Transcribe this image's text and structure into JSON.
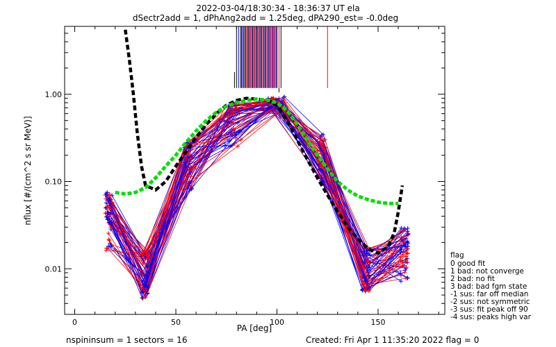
{
  "chart_data": {
    "type": "line",
    "title": "2022-03-04/18:30:34 - 18:36:37 UT ela",
    "subtitle": "dSectr2add = 1, dPhAng2add = 1.25deg, dPA290_est=  -0.0deg",
    "xlabel": "PA [deg]",
    "ylabel": "nflux [#/(cm^2 s sr MeV)]",
    "xlim": [
      -5,
      183
    ],
    "ylim": [
      0.003,
      6
    ],
    "yscale": "log",
    "x_ticks": [
      0,
      50,
      100,
      150
    ],
    "y_ticks": [
      {
        "value": 0.01,
        "label": "0.01"
      },
      {
        "value": 0.1,
        "label": "0.10"
      },
      {
        "value": 1,
        "label": "1.00"
      }
    ],
    "series": [
      {
        "color": "#000000",
        "style": "thick-dashed",
        "points": [
          [
            25,
            5.5
          ],
          [
            27,
            2.5
          ],
          [
            29,
            1.0
          ],
          [
            31,
            0.35
          ],
          [
            33,
            0.15
          ],
          [
            35,
            0.09
          ],
          [
            40,
            0.08
          ],
          [
            45,
            0.1
          ],
          [
            50,
            0.15
          ],
          [
            55,
            0.22
          ],
          [
            60,
            0.32
          ],
          [
            65,
            0.45
          ],
          [
            70,
            0.6
          ],
          [
            75,
            0.75
          ],
          [
            80,
            0.85
          ],
          [
            85,
            0.9
          ],
          [
            90,
            0.88
          ],
          [
            95,
            0.85
          ],
          [
            100,
            0.75
          ],
          [
            105,
            0.5
          ],
          [
            110,
            0.3
          ],
          [
            115,
            0.18
          ],
          [
            120,
            0.11
          ],
          [
            125,
            0.07
          ],
          [
            130,
            0.045
          ],
          [
            135,
            0.03
          ],
          [
            140,
            0.022
          ],
          [
            145,
            0.017
          ],
          [
            150,
            0.015
          ],
          [
            155,
            0.018
          ],
          [
            158,
            0.026
          ],
          [
            160,
            0.045
          ],
          [
            162,
            0.09
          ]
        ]
      },
      {
        "color": "#00e000",
        "style": "thick-dashed",
        "points": [
          [
            20,
            0.075
          ],
          [
            25,
            0.072
          ],
          [
            30,
            0.075
          ],
          [
            35,
            0.085
          ],
          [
            40,
            0.11
          ],
          [
            45,
            0.15
          ],
          [
            50,
            0.2
          ],
          [
            55,
            0.28
          ],
          [
            60,
            0.38
          ],
          [
            65,
            0.5
          ],
          [
            70,
            0.62
          ],
          [
            75,
            0.73
          ],
          [
            80,
            0.8
          ],
          [
            85,
            0.85
          ],
          [
            90,
            0.88
          ],
          [
            95,
            0.86
          ],
          [
            100,
            0.8
          ],
          [
            105,
            0.65
          ],
          [
            110,
            0.45
          ],
          [
            115,
            0.3
          ],
          [
            120,
            0.2
          ],
          [
            125,
            0.14
          ],
          [
            130,
            0.1
          ],
          [
            135,
            0.08
          ],
          [
            140,
            0.068
          ],
          [
            145,
            0.062
          ],
          [
            150,
            0.058
          ],
          [
            155,
            0.056
          ],
          [
            160,
            0.056
          ]
        ]
      }
    ],
    "flag_markers": {
      "black": [
        80,
        82,
        84,
        86,
        88,
        90,
        92,
        94,
        96,
        98,
        100,
        102
      ],
      "blue": [
        81,
        82.5,
        83,
        84.5,
        85.5,
        86.5,
        87.5,
        88.5,
        89.5,
        90.5,
        91.5,
        92.5,
        93.5,
        94.5,
        95.5,
        96.5,
        97.5,
        98.5,
        99.5
      ],
      "red": [
        83.5,
        85,
        87,
        89,
        91,
        93,
        95,
        97,
        98,
        99,
        101,
        125
      ]
    },
    "legend": {
      "title": "flag",
      "entries": [
        " 0 good fit",
        " 1 bad: not converge",
        " 2 bad: no fit",
        " 3 bad: bad fgm state",
        "-1 sus: far off median",
        "-2 sus: not symmetric",
        "-3 sus: fit peak off 90",
        "-4 sus: peaks high var"
      ]
    }
  },
  "footer": {
    "left": "nspininsum =  1  sectors = 16",
    "right": "Created: Fri Apr  1 11:35:20 2022   flag = 0"
  },
  "colors": {
    "blue": "#0000ff",
    "red": "#ff0000",
    "green": "#00e000",
    "black": "#000000"
  }
}
